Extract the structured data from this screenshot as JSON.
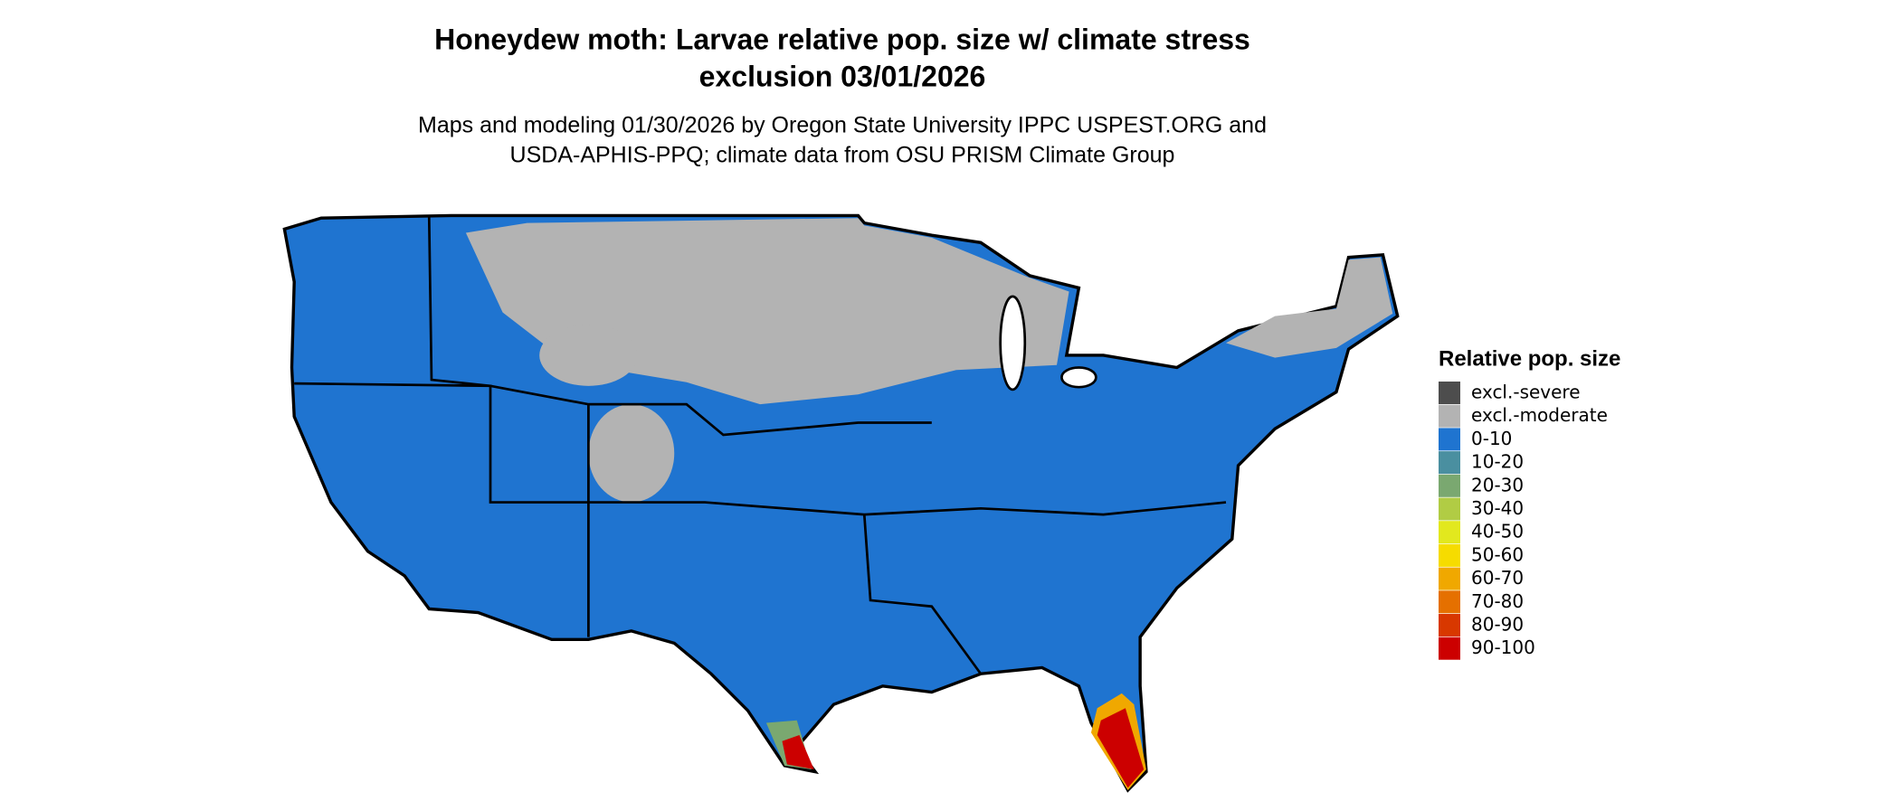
{
  "title": [
    "Honeydew moth: Larvae relative pop. size w/ climate stress",
    "exclusion 03/01/2026"
  ],
  "subtitle": [
    "Maps and modeling 01/30/2026 by Oregon State University IPPC USPEST.ORG and",
    "USDA-APHIS-PPQ; climate data from OSU PRISM Climate Group"
  ],
  "legend": {
    "title": "Relative pop. size",
    "items": [
      {
        "label": "excl.-severe",
        "color": "#4d4d4d"
      },
      {
        "label": "excl.-moderate",
        "color": "#b3b3b3"
      },
      {
        "label": "0-10",
        "color": "#1f74d0"
      },
      {
        "label": "10-20",
        "color": "#4a8fa0"
      },
      {
        "label": "20-30",
        "color": "#7aa870"
      },
      {
        "label": "30-40",
        "color": "#b1cc44"
      },
      {
        "label": "40-50",
        "color": "#e2e81e"
      },
      {
        "label": "50-60",
        "color": "#f6dc00"
      },
      {
        "label": "60-70",
        "color": "#f0a800"
      },
      {
        "label": "70-80",
        "color": "#e57000"
      },
      {
        "label": "80-90",
        "color": "#d83800"
      },
      {
        "label": "90-100",
        "color": "#cc0000"
      }
    ]
  }
}
